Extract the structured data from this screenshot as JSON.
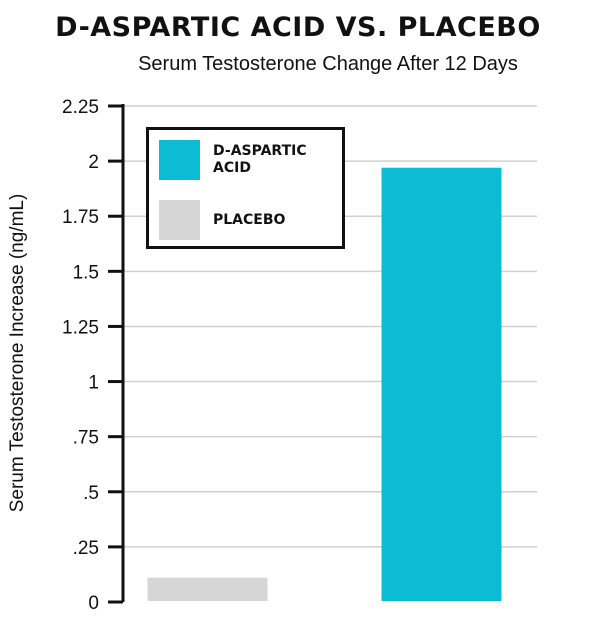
{
  "chart_data": {
    "type": "bar",
    "title": "D-ASPARTIC ACID VS. PLACEBO",
    "subtitle": "Serum Testosterone Change After 12 Days",
    "xlabel": "",
    "ylabel": "Serum Testosterone Increase (ng/mL)",
    "ylim": [
      0,
      2.25
    ],
    "yticks": [
      {
        "value": 2.25,
        "label": "2.25"
      },
      {
        "value": 2,
        "label": "2"
      },
      {
        "value": 1.75,
        "label": "1.75"
      },
      {
        "value": 1.5,
        "label": "1.5"
      },
      {
        "value": 1.25,
        "label": "1.25"
      },
      {
        "value": 1,
        "label": "1"
      },
      {
        "value": 0.75,
        "label": ".75"
      },
      {
        "value": 0.5,
        "label": ".5"
      },
      {
        "value": 0.25,
        "label": ".25"
      },
      {
        "value": 0,
        "label": "0"
      }
    ],
    "grid": true,
    "legend_position": "top-left",
    "series": [
      {
        "name": "PLACEBO",
        "value": 0.11,
        "color": "#d6d6d6"
      },
      {
        "name": "D-ASPARTIC ACID",
        "value": 1.97,
        "color": "#0bbcd4"
      }
    ],
    "legend": [
      {
        "label": "D-ASPARTIC ACID",
        "color": "#0bbcd4"
      },
      {
        "label": "PLACEBO",
        "color": "#d6d6d6"
      }
    ]
  }
}
